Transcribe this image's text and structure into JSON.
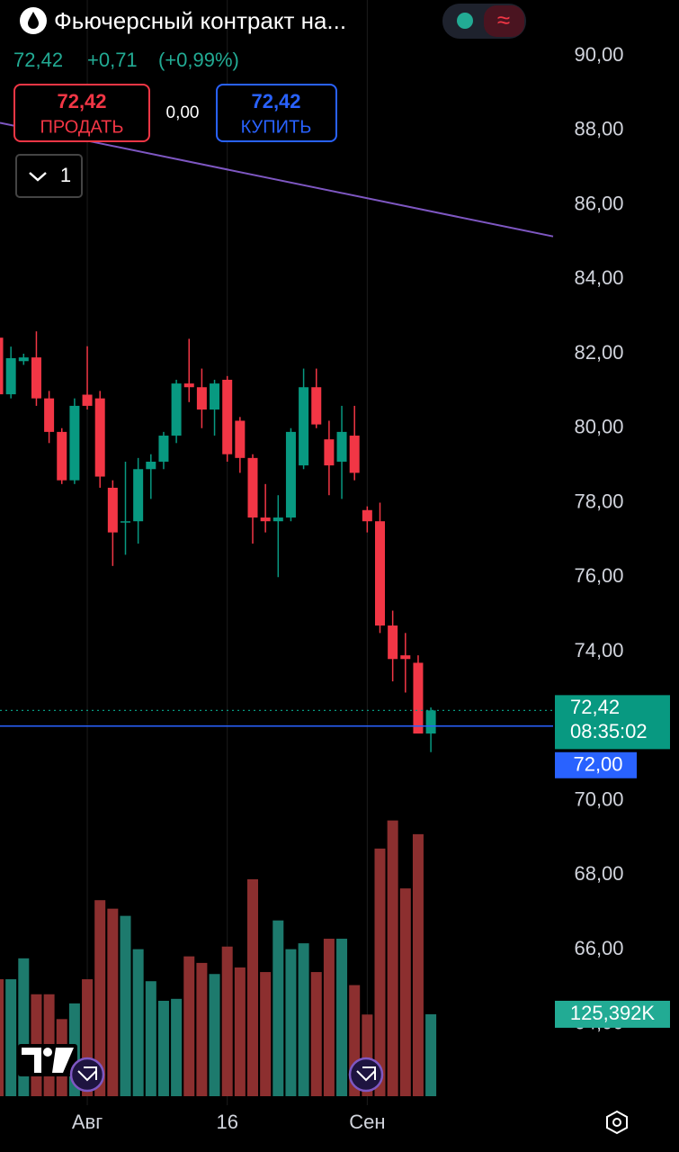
{
  "header": {
    "title": "Фьючерсный контракт на...",
    "price": "72,42",
    "change": "+0,71",
    "change_pct": "(+0,99%)"
  },
  "trade": {
    "sell_price": "72,42",
    "sell_label": "ПРОДАТЬ",
    "spread": "0,00",
    "buy_price": "72,42",
    "buy_label": "КУПИТЬ",
    "interval": "1"
  },
  "chart_data": {
    "type": "candlestick",
    "categories": [
      null,
      null,
      null,
      null,
      null,
      null,
      null,
      "Авг",
      null,
      null,
      null,
      null,
      null,
      null,
      null,
      null,
      null,
      null,
      "16",
      null,
      null,
      null,
      null,
      null,
      null,
      null,
      null,
      null,
      null,
      "Сен",
      null,
      null,
      null,
      null,
      null
    ],
    "open": [
      82.43,
      80.91,
      81.8,
      81.9,
      80.8,
      79.9,
      78.6,
      80.9,
      80.8,
      78.4,
      77.5,
      77.5,
      78.9,
      79.1,
      79.8,
      81.2,
      81.1,
      80.5,
      81.3,
      80.2,
      79.2,
      77.6,
      77.5,
      77.6,
      79.0,
      81.1,
      79.7,
      79.1,
      79.8,
      77.8,
      77.5,
      74.7,
      73.9,
      73.7,
      71.8
    ],
    "high": [
      82.6,
      82.19,
      82.0,
      82.6,
      81.0,
      80.0,
      80.8,
      82.2,
      81.0,
      78.6,
      79.1,
      79.2,
      79.3,
      79.9,
      81.3,
      82.4,
      81.6,
      81.3,
      81.4,
      80.3,
      79.3,
      78.5,
      78.2,
      80.0,
      81.6,
      81.6,
      80.2,
      80.6,
      80.6,
      77.9,
      78.0,
      75.1,
      74.5,
      73.9,
      72.5
    ],
    "low": [
      80.7,
      80.8,
      81.7,
      80.6,
      79.6,
      78.5,
      78.5,
      80.5,
      78.4,
      76.3,
      76.6,
      76.9,
      78.1,
      78.9,
      79.6,
      80.7,
      80.0,
      79.8,
      79.1,
      78.8,
      76.9,
      77.2,
      76.0,
      77.5,
      78.9,
      80.0,
      78.2,
      78.1,
      78.6,
      77.2,
      74.5,
      73.2,
      72.9,
      71.8,
      71.3
    ],
    "close": [
      80.91,
      81.88,
      81.9,
      80.8,
      79.9,
      78.6,
      80.6,
      80.6,
      78.7,
      77.2,
      77.5,
      78.9,
      79.1,
      79.8,
      81.2,
      81.1,
      80.5,
      81.2,
      79.3,
      79.2,
      77.6,
      77.5,
      77.6,
      79.9,
      81.1,
      80.1,
      79.0,
      79.9,
      78.8,
      77.5,
      74.7,
      73.8,
      73.8,
      71.8,
      72.42
    ],
    "volume": [
      179000,
      179000,
      211000,
      156000,
      156000,
      118000,
      142000,
      179000,
      300000,
      287000,
      276000,
      225000,
      176000,
      146000,
      149000,
      214000,
      204000,
      187000,
      229000,
      197000,
      332000,
      190000,
      269000,
      225000,
      234000,
      190000,
      241000,
      241000,
      170000,
      125000,
      379000,
      422000,
      318000,
      401000,
      125392
    ],
    "volume_lim": [
      0,
      500000
    ],
    "volume_label": {
      "value": 125392,
      "label": "125,392K"
    },
    "ylim": [
      64,
      90
    ],
    "yticks": [
      {
        "value": 64,
        "label": "64,00"
      },
      {
        "value": 66,
        "label": "66,00"
      },
      {
        "value": 68,
        "label": "68,00"
      },
      {
        "value": 70,
        "label": "70,00"
      },
      {
        "value": 72,
        "label": "72,00"
      },
      {
        "value": 74,
        "label": "74,00"
      },
      {
        "value": 76,
        "label": "76,00"
      },
      {
        "value": 78,
        "label": "78,00"
      },
      {
        "value": 80,
        "label": "80,00"
      },
      {
        "value": 82,
        "label": "82,00"
      },
      {
        "value": 84,
        "label": "84,00"
      },
      {
        "value": 86,
        "label": "86,00"
      },
      {
        "value": 88,
        "label": "88,00"
      },
      {
        "value": 90,
        "label": "90,00"
      }
    ],
    "last_price": {
      "value": 72.42,
      "label": "72,42",
      "countdown": "08:35:02"
    },
    "alert_line": {
      "value": 72,
      "label": "72,00",
      "color": "#2962ff"
    },
    "trend_line": {
      "values": [
        88.2,
        85.15
      ],
      "color": "#7e57c2"
    },
    "up_color": "#089981",
    "down_color": "#f23645",
    "volume_up_color": "#1d7a6d",
    "volume_down_color": "#8c2f2f",
    "grid": true
  }
}
